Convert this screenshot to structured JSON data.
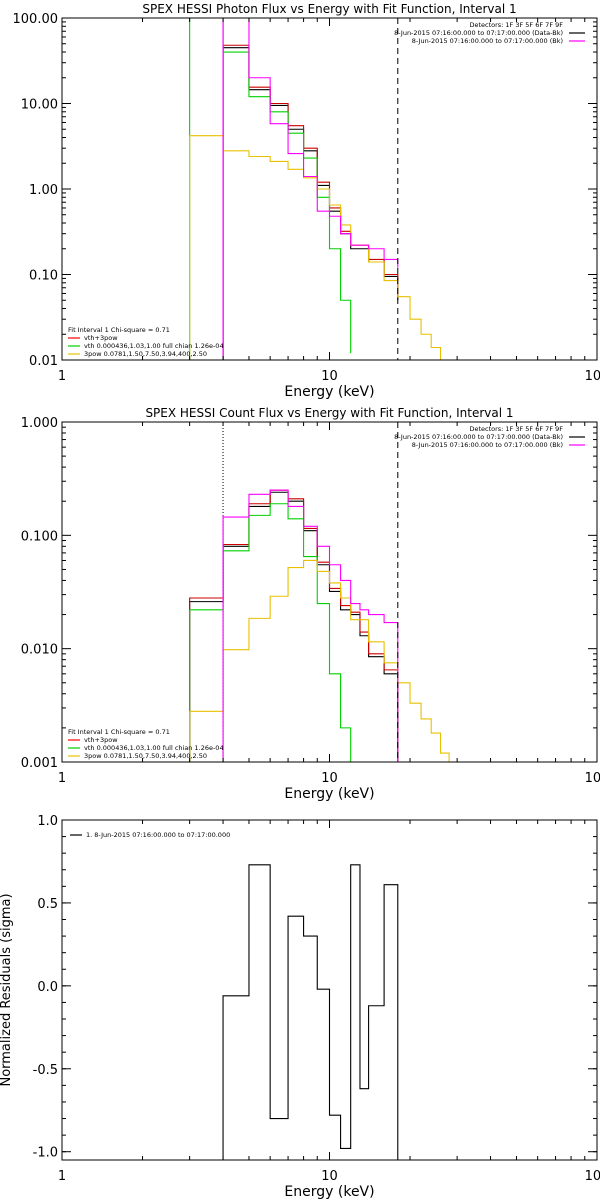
{
  "chart_data": [
    {
      "type": "line",
      "title": "SPEX HESSI Photon Flux vs Energy with Fit Function, Interval 1",
      "xlabel": "Energy (keV)",
      "ylabel": "",
      "xscale": "log",
      "yscale": "log",
      "xlim": [
        1,
        100
      ],
      "ylim": [
        0.01,
        100
      ],
      "x_ticks": [
        "1",
        "10",
        "100"
      ],
      "y_ticks": [
        {
          "v": 100,
          "label": "100.00"
        },
        {
          "v": 10,
          "label": "10.00"
        },
        {
          "v": 1,
          "label": "1.00"
        },
        {
          "v": 0.1,
          "label": "0.10"
        },
        {
          "v": 0.01,
          "label": "0.01"
        }
      ],
      "vlines": [
        {
          "x": 4.0,
          "style": "solid",
          "color": "#ff00ff"
        },
        {
          "x": 18.0,
          "style": "dashed",
          "color": "#000000"
        }
      ],
      "info_lines": [
        "Detectors: 1F 3F 5F 6F 7F 9F",
        "8-Jun-2015 07:16:00.000 to 07:17:00.000 (Data-Bk)",
        "8-Jun-2015 07:16:00.000 to 07:17:00.000 (Bk)"
      ],
      "info_colors": [
        "",
        "#000000",
        "#ff00ff"
      ],
      "legend": [
        {
          "text": "Fit Interval 1    Chi-square = 0.71",
          "color": ""
        },
        {
          "text": "vth+3pow",
          "color": "#ff0000"
        },
        {
          "text": "vth 0.000436,1.03,1.00  full chian 1.26e-04",
          "color": "#00d000"
        },
        {
          "text": "3pow 0.0781,1.50,7.50,3.94,400,2.50",
          "color": "#e8c000"
        }
      ],
      "series": [
        {
          "name": "Data-Bk",
          "color": "#000000",
          "edges": [
            4,
            5,
            6,
            7,
            8,
            9,
            10,
            11,
            12,
            14,
            16,
            18
          ],
          "values": [
            45,
            14.5,
            9.5,
            5,
            2.8,
            1.1,
            0.55,
            0.3,
            0.2,
            0.14,
            0.095,
            0.05
          ]
        },
        {
          "name": "vth+3pow",
          "color": "#cc0000",
          "edges": [
            4,
            5,
            6,
            7,
            8,
            9,
            10,
            11,
            12,
            14,
            16,
            18
          ],
          "values": [
            48,
            15.5,
            10,
            5.5,
            3,
            1.2,
            0.6,
            0.32,
            0.22,
            0.15,
            0.1,
            0.055
          ]
        },
        {
          "name": "vth",
          "color": "#00d000",
          "edges": [
            3,
            4,
            5,
            6,
            7,
            8,
            9,
            10,
            11,
            12
          ],
          "values": [
            100,
            40,
            12,
            8,
            4.5,
            2.3,
            0.8,
            0.2,
            0.05,
            0.012
          ]
        },
        {
          "name": "3pow",
          "color": "#e8c000",
          "edges": [
            3,
            4,
            5,
            6,
            7,
            8,
            9,
            10,
            11,
            12,
            14,
            16,
            18,
            20,
            22,
            24,
            26
          ],
          "values": [
            4.2,
            2.8,
            2.4,
            2.1,
            1.7,
            1.35,
            1.0,
            0.65,
            0.38,
            0.22,
            0.14,
            0.085,
            0.055,
            0.03,
            0.02,
            0.014,
            0.01
          ]
        },
        {
          "name": "Bk",
          "color": "#ff00ff",
          "edges": [
            4,
            5,
            6,
            7,
            8,
            9,
            10,
            11,
            12,
            14,
            16,
            18
          ],
          "values": [
            100,
            20,
            5.8,
            2.6,
            1.4,
            0.55,
            0.48,
            0.3,
            0.22,
            0.2,
            0.15,
            0.12
          ]
        }
      ]
    },
    {
      "type": "line",
      "title": "SPEX HESSI Count Flux vs Energy with Fit Function, Interval 1",
      "xlabel": "Energy (keV)",
      "ylabel": "",
      "xscale": "log",
      "yscale": "log",
      "xlim": [
        1,
        100
      ],
      "ylim": [
        0.001,
        1
      ],
      "x_ticks": [
        "1",
        "10",
        "100"
      ],
      "y_ticks": [
        {
          "v": 1,
          "label": "1.000"
        },
        {
          "v": 0.1,
          "label": "0.100"
        },
        {
          "v": 0.01,
          "label": "0.010"
        },
        {
          "v": 0.001,
          "label": "0.001"
        }
      ],
      "vlines": [
        {
          "x": 4.0,
          "style": "dotted",
          "color": "#000000"
        },
        {
          "x": 4.0,
          "style": "solid",
          "color": "#ff00ff",
          "from": 0.15
        },
        {
          "x": 18.0,
          "style": "dashed",
          "color": "#000000"
        }
      ],
      "info_lines": [
        "Detectors: 1F 3F 5F 6F 7F 9F",
        "8-Jun-2015 07:16:00.000 to 07:17:00.000 (Data-Bk)",
        "8-Jun-2015 07:16:00.000 to 07:17:00.000 (Bk)"
      ],
      "info_colors": [
        "",
        "#000000",
        "#ff00ff"
      ],
      "legend": [
        {
          "text": "Fit Interval 1    Chi-square = 0.71",
          "color": ""
        },
        {
          "text": "vth+3pow",
          "color": "#ff0000"
        },
        {
          "text": "vth 0.000436,1.03,1.00  full chian 1.26e-04",
          "color": "#00d000"
        },
        {
          "text": "3pow 0.0781,1.50,7.50,3.94,400,2.50",
          "color": "#e8c000"
        }
      ],
      "series": [
        {
          "name": "Data-Bk",
          "color": "#000000",
          "edges": [
            3,
            4,
            5,
            6,
            7,
            8,
            9,
            10,
            11,
            12,
            13,
            14,
            16,
            18
          ],
          "values": [
            0.026,
            0.08,
            0.18,
            0.24,
            0.2,
            0.11,
            0.055,
            0.032,
            0.022,
            0.02,
            0.013,
            0.0085,
            0.006
          ]
        },
        {
          "name": "vth+3pow",
          "color": "#cc0000",
          "edges": [
            3,
            4,
            5,
            6,
            7,
            8,
            9,
            10,
            11,
            12,
            13,
            14,
            16,
            18
          ],
          "values": [
            0.028,
            0.083,
            0.19,
            0.25,
            0.21,
            0.115,
            0.058,
            0.034,
            0.024,
            0.021,
            0.014,
            0.009,
            0.0065
          ]
        },
        {
          "name": "vth",
          "color": "#00d000",
          "edges": [
            3,
            4,
            5,
            6,
            7,
            8,
            9,
            10,
            11,
            12
          ],
          "values": [
            0.022,
            0.073,
            0.15,
            0.19,
            0.14,
            0.065,
            0.025,
            0.006,
            0.002,
            0.001
          ]
        },
        {
          "name": "3pow",
          "color": "#e8c000",
          "edges": [
            3,
            4,
            5,
            6,
            7,
            8,
            9,
            10,
            11,
            12,
            14,
            16,
            18,
            20,
            22,
            24,
            26,
            28
          ],
          "values": [
            0.0028,
            0.0098,
            0.0185,
            0.029,
            0.052,
            0.06,
            0.048,
            0.038,
            0.028,
            0.018,
            0.0115,
            0.0075,
            0.005,
            0.0033,
            0.0024,
            0.0018,
            0.0012,
            0.001
          ]
        },
        {
          "name": "Bk",
          "color": "#ff00ff",
          "edges": [
            4,
            5,
            6,
            7,
            8,
            9,
            10,
            11,
            12,
            13,
            14,
            16,
            18
          ],
          "values": [
            0.145,
            0.23,
            0.25,
            0.18,
            0.12,
            0.08,
            0.055,
            0.04,
            0.025,
            0.022,
            0.02,
            0.017
          ]
        }
      ]
    },
    {
      "type": "line",
      "title": "",
      "xlabel": "Energy (keV)",
      "ylabel": "Normalized Residuals (sigma)",
      "xscale": "log",
      "yscale": "linear",
      "xlim": [
        1,
        100
      ],
      "ylim": [
        -1.05,
        1.0
      ],
      "x_ticks": [
        "1",
        "10",
        "100"
      ],
      "y_ticks": [
        {
          "v": 1.0,
          "label": "1.0"
        },
        {
          "v": 0.5,
          "label": "0.5"
        },
        {
          "v": 0.0,
          "label": "0.0"
        },
        {
          "v": -0.5,
          "label": "-0.5"
        },
        {
          "v": -1.0,
          "label": "-1.0"
        }
      ],
      "legend": [
        {
          "text": "1.  8-Jun-2015 07:16:00.000 to 07:17:00.000",
          "color": "#000000"
        }
      ],
      "series": [
        {
          "name": "1.  8-Jun-2015 07:16:00.000 to 07:17:00.000",
          "color": "#000000",
          "edges": [
            4,
            5,
            6,
            7,
            8,
            9,
            10,
            11,
            12,
            13,
            14,
            16,
            18
          ],
          "values": [
            -0.06,
            0.73,
            -0.8,
            0.42,
            0.3,
            -0.02,
            -0.78,
            -0.98,
            0.73,
            -0.62,
            -0.12,
            0.61
          ]
        }
      ]
    }
  ]
}
